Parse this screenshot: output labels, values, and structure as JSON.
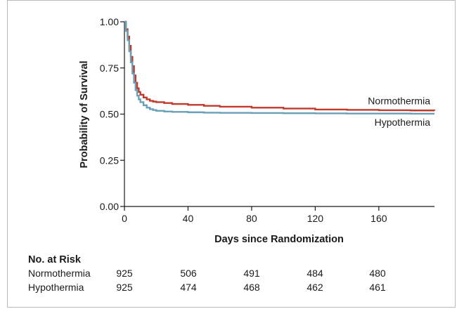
{
  "chart_data": {
    "type": "line",
    "subtype": "kaplan-meier",
    "title": "",
    "xlabel": "Days since Randomization",
    "ylabel": "Probability of Survival",
    "xlim": [
      0,
      195
    ],
    "ylim": [
      0,
      1
    ],
    "x_ticks": [
      0,
      40,
      80,
      120,
      160
    ],
    "y_ticks": [
      "0.00",
      "0.25",
      "0.50",
      "0.75",
      "1.00"
    ],
    "grid": false,
    "series": [
      {
        "name": "Normothermia",
        "color": "#c0392b",
        "x": [
          0,
          1,
          2,
          3,
          4,
          5,
          6,
          7,
          8,
          9,
          10,
          12,
          14,
          16,
          18,
          20,
          25,
          30,
          40,
          50,
          60,
          80,
          100,
          120,
          140,
          160,
          180,
          195
        ],
        "y": [
          1.0,
          0.96,
          0.92,
          0.87,
          0.81,
          0.76,
          0.71,
          0.67,
          0.64,
          0.62,
          0.605,
          0.59,
          0.58,
          0.572,
          0.568,
          0.565,
          0.56,
          0.555,
          0.55,
          0.545,
          0.54,
          0.535,
          0.53,
          0.525,
          0.523,
          0.521,
          0.52,
          0.519
        ]
      },
      {
        "name": "Hypothermia",
        "color": "#6a9fb8",
        "x": [
          0,
          1,
          2,
          3,
          4,
          5,
          6,
          7,
          8,
          9,
          10,
          12,
          14,
          16,
          18,
          20,
          25,
          30,
          40,
          50,
          60,
          80,
          100,
          120,
          140,
          160,
          180,
          195
        ],
        "y": [
          1.0,
          0.95,
          0.9,
          0.84,
          0.78,
          0.72,
          0.67,
          0.63,
          0.6,
          0.58,
          0.565,
          0.548,
          0.535,
          0.527,
          0.522,
          0.518,
          0.514,
          0.512,
          0.51,
          0.508,
          0.507,
          0.506,
          0.505,
          0.504,
          0.503,
          0.503,
          0.502,
          0.502
        ]
      }
    ],
    "legend": "inline-right"
  },
  "risk_table": {
    "title": "No. at Risk",
    "days": [
      0,
      40,
      80,
      120,
      160
    ],
    "rows": [
      {
        "name": "Normothermia",
        "values": [
          "925",
          "506",
          "491",
          "484",
          "480"
        ]
      },
      {
        "name": "Hypothermia",
        "values": [
          "925",
          "474",
          "468",
          "462",
          "461"
        ]
      }
    ]
  }
}
